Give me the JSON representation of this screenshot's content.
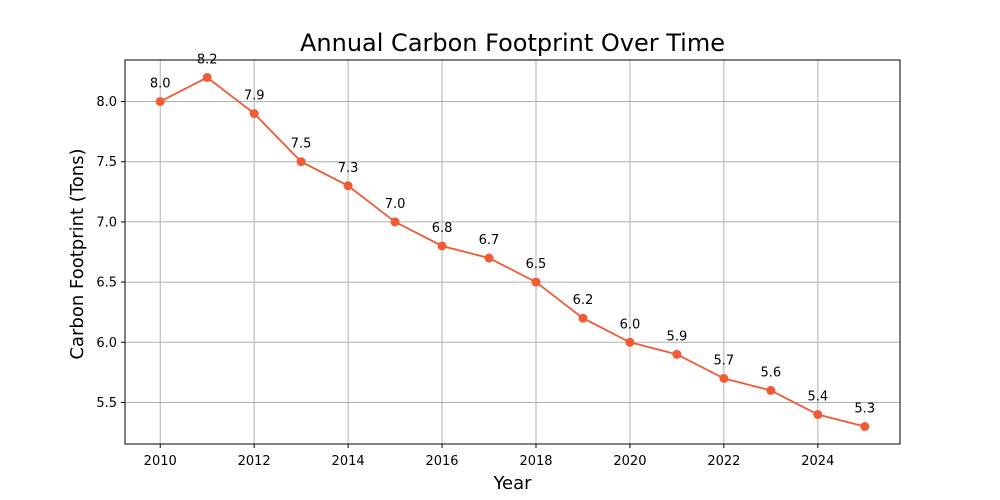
{
  "chart_data": {
    "type": "line",
    "title": "Annual Carbon Footprint Over Time",
    "xlabel": "Year",
    "ylabel": "Carbon Footprint (Tons)",
    "xlim": [
      2009.25,
      2025.75
    ],
    "ylim": [
      5.155,
      8.345
    ],
    "x_ticks": [
      2010,
      2012,
      2014,
      2016,
      2018,
      2020,
      2022,
      2024
    ],
    "y_ticks": [
      5.5,
      6.0,
      6.5,
      7.0,
      7.5,
      8.0
    ],
    "y_tick_labels": [
      "5.5",
      "6.0",
      "6.5",
      "7.0",
      "7.5",
      "8.0"
    ],
    "grid": true,
    "series": [
      {
        "color": "#f05a35",
        "marker": "circle",
        "x": [
          2010,
          2011,
          2012,
          2013,
          2014,
          2015,
          2016,
          2017,
          2018,
          2019,
          2020,
          2021,
          2022,
          2023,
          2024,
          2025
        ],
        "values": [
          8.0,
          8.2,
          7.9,
          7.5,
          7.3,
          7.0,
          6.8,
          6.7,
          6.5,
          6.2,
          6.0,
          5.9,
          5.7,
          5.6,
          5.4,
          5.3
        ],
        "labels": [
          "8.0",
          "8.2",
          "7.9",
          "7.5",
          "7.3",
          "7.0",
          "6.8",
          "6.7",
          "6.5",
          "6.2",
          "6.0",
          "5.9",
          "5.7",
          "5.6",
          "5.4",
          "5.3"
        ]
      }
    ]
  }
}
